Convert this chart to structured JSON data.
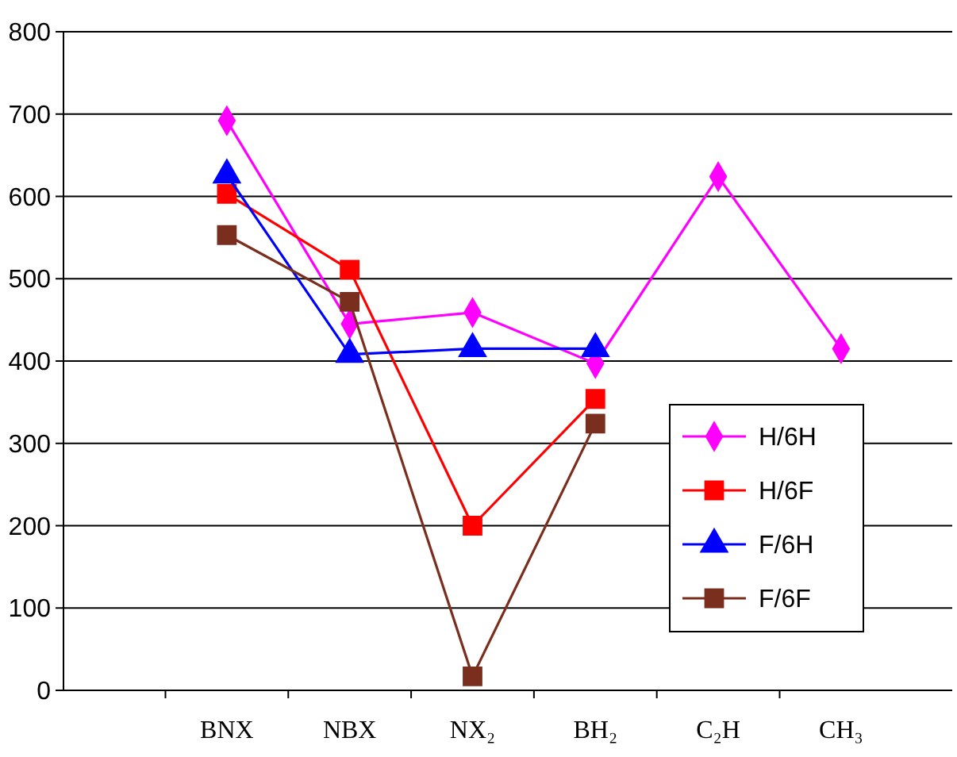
{
  "chart_data": {
    "type": "line",
    "categories": [
      "BNX",
      "NBX",
      "NX₂",
      "BH₂",
      "C₂H",
      "CH₃"
    ],
    "series": [
      {
        "name": "H/6H",
        "color": "#ff00ff",
        "marker": "diamond",
        "values": [
          692,
          445,
          459,
          397,
          624,
          415
        ]
      },
      {
        "name": "H/6F",
        "color": "#ff0000",
        "marker": "square",
        "values": [
          603,
          511,
          200,
          354,
          null,
          null
        ]
      },
      {
        "name": "F/6H",
        "color": "#0000ff",
        "marker": "triangle",
        "values": [
          626,
          408,
          415,
          415,
          null,
          null
        ]
      },
      {
        "name": "F/6F",
        "color": "#7a2e1e",
        "marker": "square",
        "values": [
          553,
          472,
          17,
          324,
          null,
          null
        ]
      }
    ],
    "ylim": [
      0,
      800
    ],
    "yticks": [
      0,
      100,
      200,
      300,
      400,
      500,
      600,
      700,
      800
    ],
    "grid": "y",
    "legend": "right",
    "line_style": "solid"
  }
}
